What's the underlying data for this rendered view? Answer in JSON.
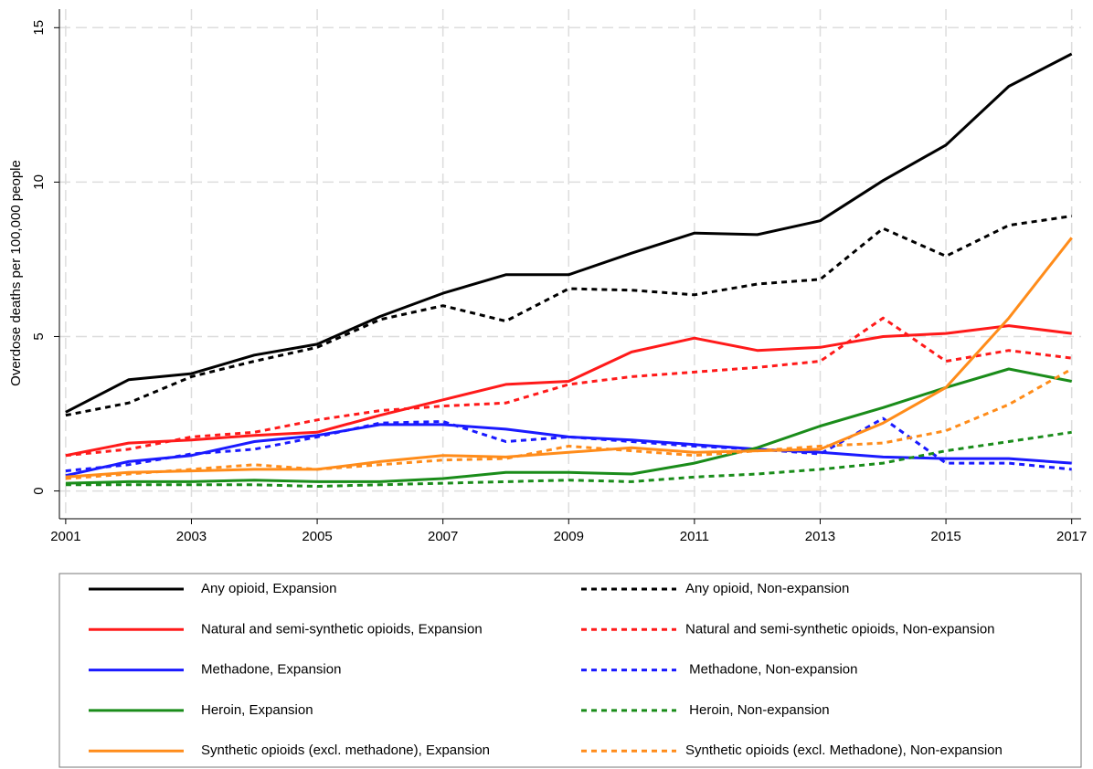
{
  "chart_data": {
    "type": "line",
    "y_label": "Overdose deaths per 100,000 people",
    "x": [
      2001,
      2002,
      2003,
      2004,
      2005,
      2006,
      2007,
      2008,
      2009,
      2010,
      2011,
      2012,
      2013,
      2014,
      2015,
      2016,
      2017
    ],
    "xlim": [
      2000.9,
      2017.15
    ],
    "xticks": [
      2001,
      2003,
      2005,
      2007,
      2009,
      2011,
      2013,
      2015,
      2017
    ],
    "ylim": [
      -0.9,
      15.6
    ],
    "yticks": [
      0,
      5,
      10,
      15
    ],
    "grid": true,
    "series": [
      {
        "name": "Any opioid, Expansion",
        "color": "#000000",
        "style": "solid",
        "values": [
          2.55,
          3.6,
          3.8,
          4.4,
          4.75,
          5.65,
          6.4,
          7.0,
          7.0,
          7.7,
          8.35,
          8.3,
          8.75,
          10.05,
          11.2,
          13.1,
          14.15
        ]
      },
      {
        "name": "Any opioid, Non-expansion",
        "color": "#000000",
        "style": "dashed",
        "values": [
          2.45,
          2.85,
          3.7,
          4.2,
          4.65,
          5.55,
          6.0,
          5.5,
          6.55,
          6.5,
          6.35,
          6.7,
          6.85,
          8.5,
          7.6,
          8.6,
          8.9
        ]
      },
      {
        "name": "Natural and semi-synthetic opioids, Expansion",
        "color": "#ff1a1a",
        "style": "solid",
        "values": [
          1.15,
          1.55,
          1.65,
          1.8,
          1.9,
          2.45,
          2.95,
          3.45,
          3.55,
          4.5,
          4.95,
          4.55,
          4.65,
          5.0,
          5.1,
          5.35,
          5.1
        ]
      },
      {
        "name": "Natural and semi-synthetic opioids, Non-expansion",
        "color": "#ff1a1a",
        "style": "dashed",
        "values": [
          1.15,
          1.35,
          1.75,
          1.9,
          2.3,
          2.6,
          2.75,
          2.85,
          3.45,
          3.7,
          3.85,
          4.0,
          4.2,
          5.6,
          4.2,
          4.55,
          4.3
        ]
      },
      {
        "name": "Methadone, Expansion",
        "color": "#1a1aff",
        "style": "solid",
        "values": [
          0.5,
          0.95,
          1.15,
          1.6,
          1.8,
          2.15,
          2.15,
          2.0,
          1.75,
          1.65,
          1.5,
          1.35,
          1.25,
          1.1,
          1.05,
          1.05,
          0.9
        ]
      },
      {
        "name": " Methadone, Non-expansion",
        "color": "#1a1aff",
        "style": "dashed",
        "values": [
          0.65,
          0.85,
          1.2,
          1.35,
          1.75,
          2.2,
          2.25,
          1.6,
          1.75,
          1.6,
          1.45,
          1.35,
          1.2,
          2.35,
          0.9,
          0.9,
          0.7
        ]
      },
      {
        "name": "Heroin, Expansion",
        "color": "#1a8c1a",
        "style": "solid",
        "values": [
          0.25,
          0.3,
          0.3,
          0.35,
          0.3,
          0.3,
          0.4,
          0.6,
          0.6,
          0.55,
          0.9,
          1.4,
          2.1,
          2.7,
          3.35,
          3.95,
          3.55
        ]
      },
      {
        "name": " Heroin, Non-expansion",
        "color": "#1a8c1a",
        "style": "dashed",
        "values": [
          0.2,
          0.2,
          0.2,
          0.2,
          0.15,
          0.2,
          0.25,
          0.3,
          0.35,
          0.3,
          0.45,
          0.55,
          0.7,
          0.9,
          1.3,
          1.6,
          1.9
        ]
      },
      {
        "name": "Synthetic opioids (excl. methadone), Expansion",
        "color": "#ff8c1a",
        "style": "solid",
        "values": [
          0.45,
          0.6,
          0.65,
          0.7,
          0.7,
          0.95,
          1.15,
          1.1,
          1.25,
          1.4,
          1.25,
          1.3,
          1.35,
          2.2,
          3.35,
          5.6,
          8.2
        ]
      },
      {
        "name": "Synthetic opioids (excl. Methadone), Non-expansion",
        "color": "#ff8c1a",
        "style": "dashed",
        "values": [
          0.4,
          0.55,
          0.7,
          0.85,
          0.7,
          0.85,
          1.0,
          1.05,
          1.45,
          1.3,
          1.15,
          1.3,
          1.45,
          1.55,
          1.95,
          2.8,
          3.95
        ]
      }
    ]
  }
}
